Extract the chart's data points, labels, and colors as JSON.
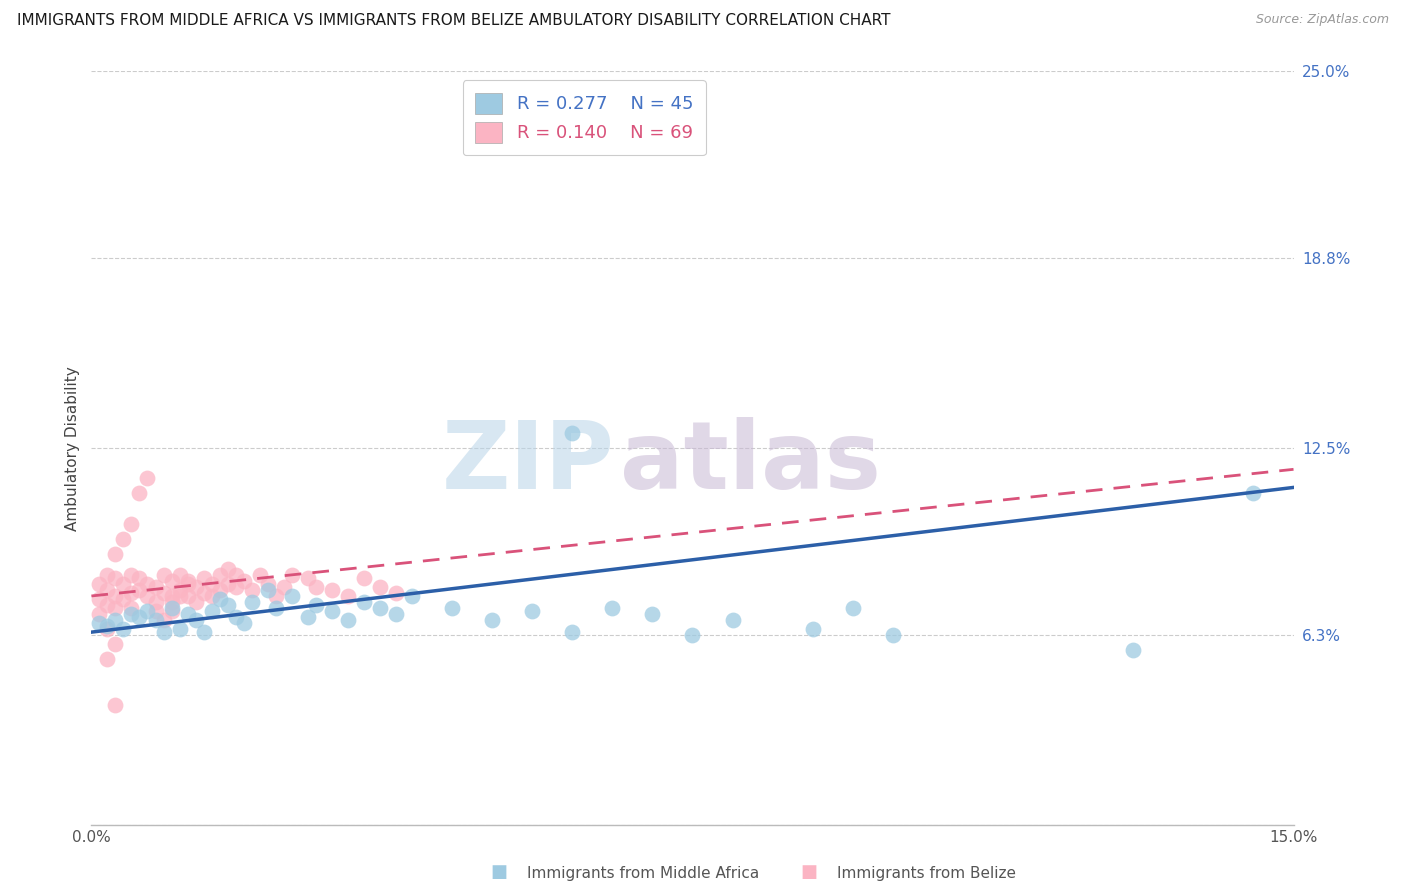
{
  "title": "IMMIGRANTS FROM MIDDLE AFRICA VS IMMIGRANTS FROM BELIZE AMBULATORY DISABILITY CORRELATION CHART",
  "source": "Source: ZipAtlas.com",
  "ylabel": "Ambulatory Disability",
  "xlim": [
    0.0,
    0.15
  ],
  "ylim": [
    0.0,
    0.25
  ],
  "ytick_vals": [
    0.0,
    0.063,
    0.125,
    0.188,
    0.25
  ],
  "ytick_labels": [
    "",
    "6.3%",
    "12.5%",
    "18.8%",
    "25.0%"
  ],
  "grid_color": "#cccccc",
  "watermark_zip": "ZIP",
  "watermark_atlas": "atlas",
  "blue_R": "0.277",
  "blue_N": "45",
  "pink_R": "0.140",
  "pink_N": "69",
  "legend_label_blue": "Immigrants from Middle Africa",
  "legend_label_pink": "Immigrants from Belize",
  "blue_color": "#9ecae1",
  "pink_color": "#fbb4c3",
  "blue_line_color": "#2c5fa8",
  "pink_line_color": "#d9527a",
  "blue_scatter_x": [
    0.001,
    0.002,
    0.003,
    0.004,
    0.005,
    0.006,
    0.007,
    0.008,
    0.009,
    0.01,
    0.011,
    0.012,
    0.013,
    0.014,
    0.015,
    0.016,
    0.017,
    0.018,
    0.019,
    0.02,
    0.022,
    0.023,
    0.025,
    0.027,
    0.028,
    0.03,
    0.032,
    0.034,
    0.036,
    0.038,
    0.04,
    0.045,
    0.05,
    0.055,
    0.06,
    0.065,
    0.07,
    0.075,
    0.08,
    0.09,
    0.06,
    0.095,
    0.1,
    0.13,
    0.145
  ],
  "blue_scatter_y": [
    0.067,
    0.066,
    0.068,
    0.065,
    0.07,
    0.069,
    0.071,
    0.068,
    0.064,
    0.072,
    0.065,
    0.07,
    0.068,
    0.064,
    0.071,
    0.075,
    0.073,
    0.069,
    0.067,
    0.074,
    0.078,
    0.072,
    0.076,
    0.069,
    0.073,
    0.071,
    0.068,
    0.074,
    0.072,
    0.07,
    0.076,
    0.072,
    0.068,
    0.071,
    0.064,
    0.072,
    0.07,
    0.063,
    0.068,
    0.065,
    0.13,
    0.072,
    0.063,
    0.058,
    0.11
  ],
  "pink_scatter_x": [
    0.001,
    0.001,
    0.001,
    0.002,
    0.002,
    0.002,
    0.003,
    0.003,
    0.003,
    0.004,
    0.004,
    0.005,
    0.005,
    0.005,
    0.006,
    0.006,
    0.007,
    0.007,
    0.008,
    0.008,
    0.009,
    0.009,
    0.01,
    0.01,
    0.01,
    0.011,
    0.011,
    0.012,
    0.012,
    0.013,
    0.013,
    0.014,
    0.014,
    0.015,
    0.015,
    0.016,
    0.016,
    0.017,
    0.017,
    0.018,
    0.018,
    0.019,
    0.02,
    0.021,
    0.022,
    0.023,
    0.024,
    0.025,
    0.027,
    0.028,
    0.03,
    0.032,
    0.034,
    0.036,
    0.038,
    0.003,
    0.004,
    0.005,
    0.006,
    0.007,
    0.002,
    0.003,
    0.008,
    0.009,
    0.01,
    0.011,
    0.012,
    0.002,
    0.003
  ],
  "pink_scatter_y": [
    0.07,
    0.075,
    0.08,
    0.073,
    0.078,
    0.083,
    0.072,
    0.076,
    0.082,
    0.075,
    0.08,
    0.072,
    0.077,
    0.083,
    0.078,
    0.082,
    0.076,
    0.08,
    0.074,
    0.079,
    0.077,
    0.083,
    0.071,
    0.076,
    0.081,
    0.078,
    0.083,
    0.076,
    0.081,
    0.074,
    0.079,
    0.077,
    0.082,
    0.076,
    0.08,
    0.078,
    0.083,
    0.08,
    0.085,
    0.079,
    0.083,
    0.081,
    0.078,
    0.083,
    0.08,
    0.076,
    0.079,
    0.083,
    0.082,
    0.079,
    0.078,
    0.076,
    0.082,
    0.079,
    0.077,
    0.09,
    0.095,
    0.1,
    0.11,
    0.115,
    0.065,
    0.06,
    0.071,
    0.068,
    0.074,
    0.076,
    0.08,
    0.055,
    0.04
  ],
  "blue_trend_x": [
    0.0,
    0.15
  ],
  "blue_trend_y": [
    0.064,
    0.112
  ],
  "pink_trend_x": [
    0.0,
    0.15
  ],
  "pink_trend_y": [
    0.076,
    0.118
  ]
}
